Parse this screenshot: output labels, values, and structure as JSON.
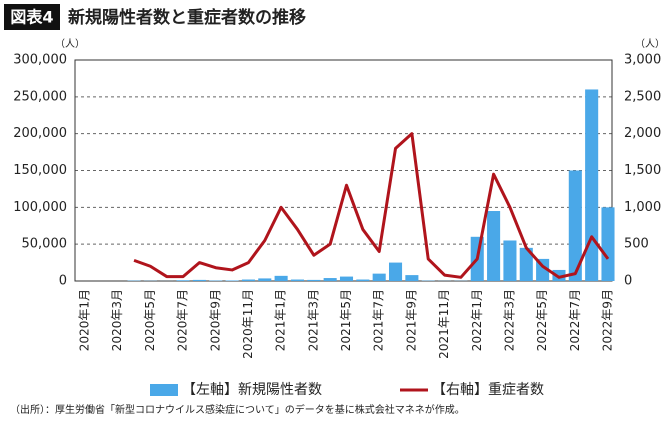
{
  "badge": "図表4",
  "chart_data": {
    "type": "bar-line",
    "title": "新規陽性者数と重症者数の推移",
    "y_unit": "（人）",
    "y2_unit": "（人）",
    "categories": [
      "2020年1月",
      null,
      "2020年3月",
      null,
      "2020年5月",
      null,
      "2020年7月",
      null,
      "2020年9月",
      null,
      "2020年11月",
      null,
      "2021年1月",
      null,
      "2021年3月",
      null,
      "2021年5月",
      null,
      "2021年7月",
      null,
      "2021年9月",
      null,
      "2021年11月",
      null,
      "2022年1月",
      null,
      "2022年3月",
      null,
      "2022年5月",
      null,
      "2022年7月",
      null,
      "2022年9月"
    ],
    "series": [
      {
        "name": "【左軸】新規陽性者数",
        "color": "#4aa8e8",
        "axis": "y",
        "values": [
          0,
          0,
          0,
          500,
          300,
          100,
          1000,
          1500,
          600,
          700,
          2000,
          3500,
          7000,
          2000,
          1500,
          4000,
          6000,
          2000,
          10000,
          25000,
          8000,
          500,
          200,
          300,
          60000,
          95000,
          55000,
          45000,
          30000,
          15000,
          150000,
          260000,
          100000
        ]
      },
      {
        "name": "【右軸】重症者数",
        "color": "#b0141c",
        "axis": "y2",
        "values": [
          null,
          null,
          null,
          280,
          200,
          60,
          60,
          250,
          180,
          150,
          250,
          550,
          1000,
          700,
          350,
          500,
          1300,
          700,
          400,
          1800,
          2000,
          300,
          80,
          50,
          300,
          1450,
          1000,
          450,
          200,
          50,
          100,
          600,
          300
        ]
      }
    ],
    "ylim": [
      0,
      300000
    ],
    "yticks": [
      0,
      {
        "value": 50000,
        "label": "50,000"
      },
      {
        "value": 100000,
        "label": "100,000"
      },
      {
        "value": 150000,
        "label": "150,000"
      },
      {
        "value": 200000,
        "label": "200,000"
      },
      {
        "value": 250000,
        "label": "250,000"
      },
      {
        "value": 300000,
        "label": "300,000"
      }
    ],
    "y2lim": [
      0,
      3000
    ],
    "y2ticks": [
      0,
      500,
      {
        "value": 1000,
        "label": "1,000"
      },
      {
        "value": 1500,
        "label": "1,500"
      },
      {
        "value": 2000,
        "label": "2,000"
      },
      {
        "value": 2500,
        "label": "2,500"
      },
      {
        "value": 3000,
        "label": "3,000"
      }
    ],
    "grid": true
  },
  "source": "（出所）：厚生労働省「新型コロナウイルス感染症について」のデータを基に株式会社マネネが作成。"
}
